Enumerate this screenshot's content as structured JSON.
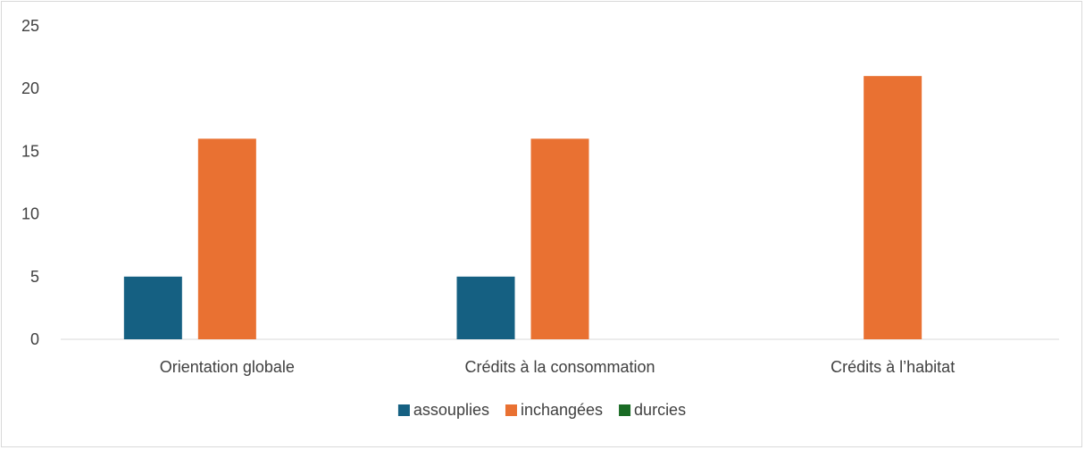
{
  "chart_data": {
    "type": "bar",
    "title": "",
    "xlabel": "",
    "ylabel": "",
    "categories": [
      "Orientation globale",
      "Crédits à la consommation",
      "Crédits à l’habitat"
    ],
    "series": [
      {
        "name": "assouplies",
        "color": "#156082",
        "values": [
          5,
          5,
          0
        ]
      },
      {
        "name": "inchangées",
        "color": "#E97132",
        "values": [
          16,
          16,
          21
        ]
      },
      {
        "name": "durcies",
        "color": "#196B24",
        "values": [
          0,
          0,
          0
        ]
      }
    ],
    "ylim": [
      0,
      25
    ],
    "yticks": [
      0,
      5,
      10,
      15,
      20,
      25
    ],
    "grid": false,
    "legend_position": "bottom"
  }
}
